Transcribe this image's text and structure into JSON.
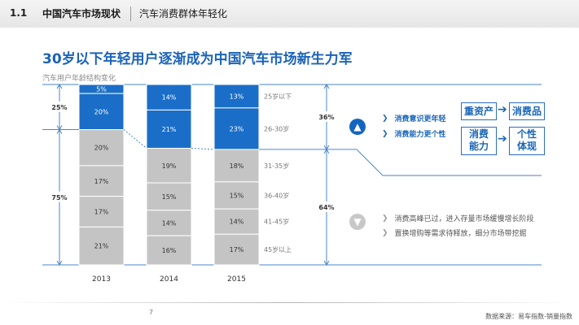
{
  "header": {
    "section_no": "1.1",
    "section_title": "中国汽车市场现状",
    "section_subtitle": "汽车消费群体年轻化"
  },
  "title": "30岁以下年轻用户逐渐成为中国汽车市场新生力军",
  "chart_subtitle": "汽车用户年龄结构变化",
  "chart_data": {
    "type": "bar",
    "stacked": true,
    "percent_stacked": true,
    "categories": [
      "2013",
      "2014",
      "2015"
    ],
    "series": [
      {
        "name": "25岁以下",
        "values": [
          5,
          14,
          13
        ],
        "color": "#1a6ec8"
      },
      {
        "name": "26-30岁",
        "values": [
          20,
          21,
          23
        ],
        "color": "#1a6ec8"
      },
      {
        "name": "31-35岁",
        "values": [
          20,
          19,
          18
        ],
        "color": "#c4c4c4"
      },
      {
        "name": "36-40岁",
        "values": [
          17,
          15,
          15
        ],
        "color": "#c4c4c4"
      },
      {
        "name": "41-45岁",
        "values": [
          17,
          14,
          14
        ],
        "color": "#c4c4c4"
      },
      {
        "name": "45岁以上",
        "values": [
          21,
          16,
          17
        ],
        "color": "#c4c4c4"
      }
    ],
    "value_labels": [
      [
        "5%",
        "20%",
        "20%",
        "17%",
        "17%",
        "21%"
      ],
      [
        "14%",
        "21%",
        "19%",
        "15%",
        "14%",
        "16%"
      ],
      [
        "13%",
        "23%",
        "18%",
        "15%",
        "14%",
        "17%"
      ]
    ],
    "left_brackets": [
      {
        "label": "25%",
        "of": "2013 under 30"
      },
      {
        "label": "75%",
        "of": "2013 over 30"
      }
    ],
    "right_brackets": [
      {
        "label": "36%",
        "of": "2015 under 30"
      },
      {
        "label": "64%",
        "of": "2015 over 30"
      }
    ],
    "ylim": [
      0,
      100
    ]
  },
  "insights": {
    "up": {
      "bullets": [
        "消费意识更年轻",
        "消费能力更个性"
      ],
      "flow1": {
        "from": "重资产",
        "to": "消费品"
      },
      "flow2": {
        "from": "消费\n能力",
        "to": "个性\n体现"
      }
    },
    "down": {
      "bullets": [
        "消费高峰已过，进入存量市场缓慢增长阶段",
        "置换增购等需求待释放，细分市场带挖掘"
      ]
    }
  },
  "page_number": "7",
  "source": "数据来源：易车指数-销量指数",
  "colors": {
    "accent": "#1a6ec8",
    "gray": "#c4c4c4",
    "title": "#1b63b8"
  }
}
